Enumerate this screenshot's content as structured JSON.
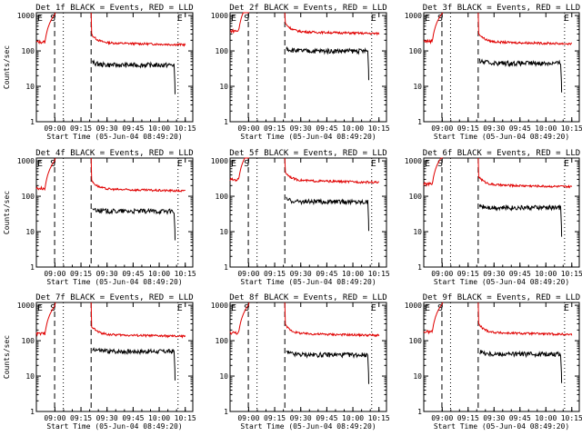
{
  "chart_data": [
    {
      "type": "line",
      "title": "Det 1f BLACK = Events, RED = LLD",
      "ylabel": "Counts/sec",
      "xlabel": "Start Time (05-Jun-04 08:49:20)",
      "x_ticks": [
        "09:00",
        "09:15",
        "09:30",
        "09:45",
        "10:00",
        "10:15"
      ],
      "y_ticks": [
        "1",
        "10",
        "100",
        "1000"
      ],
      "ylim": [
        1,
        1200
      ],
      "markers": [
        {
          "label": "E",
          "x": "08:52"
        },
        {
          "label": "S",
          "x": "09:02"
        },
        {
          "label": "E",
          "x": "10:10"
        }
      ],
      "lld_level": 170,
      "events_level": 40
    },
    {
      "type": "line",
      "title": "Det 2f BLACK = Events, RED = LLD",
      "ylabel": "",
      "xlabel": "Start Time (05-Jun-04 08:49:20)",
      "x_ticks": [
        "09:00",
        "09:15",
        "09:30",
        "09:45",
        "10:00",
        "10:15"
      ],
      "y_ticks": [
        "1",
        "10",
        "100",
        "1000"
      ],
      "ylim": [
        1,
        1200
      ],
      "markers": [
        {
          "label": "E",
          "x": "08:52"
        },
        {
          "label": "S",
          "x": "09:02"
        },
        {
          "label": "E",
          "x": "10:10"
        }
      ],
      "lld_level": 350,
      "events_level": 100
    },
    {
      "type": "line",
      "title": "Det 3f BLACK = Events, RED = LLD",
      "ylabel": "",
      "xlabel": "Start Time (05-Jun-04 08:49:20)",
      "x_ticks": [
        "09:00",
        "09:15",
        "09:30",
        "09:45",
        "10:00",
        "10:15"
      ],
      "y_ticks": [
        "1",
        "10",
        "100",
        "1000"
      ],
      "ylim": [
        1,
        1200
      ],
      "markers": [
        {
          "label": "E",
          "x": "08:52"
        },
        {
          "label": "S",
          "x": "09:02"
        },
        {
          "label": "E",
          "x": "10:10"
        }
      ],
      "lld_level": 180,
      "events_level": 45
    },
    {
      "type": "line",
      "title": "Det 4f BLACK = Events, RED = LLD",
      "ylabel": "Counts/sec",
      "xlabel": "Start Time (05-Jun-04 08:49:20)",
      "x_ticks": [
        "09:00",
        "09:15",
        "09:30",
        "09:45",
        "10:00",
        "10:15"
      ],
      "y_ticks": [
        "1",
        "10",
        "100",
        "1000"
      ],
      "ylim": [
        1,
        1200
      ],
      "markers": [
        {
          "label": "E",
          "x": "08:52"
        },
        {
          "label": "S",
          "x": "09:02"
        },
        {
          "label": "E",
          "x": "10:10"
        }
      ],
      "lld_level": 160,
      "events_level": 38
    },
    {
      "type": "line",
      "title": "Det 5f BLACK = Events, RED = LLD",
      "ylabel": "",
      "xlabel": "Start Time (05-Jun-04 08:49:20)",
      "x_ticks": [
        "09:00",
        "09:15",
        "09:30",
        "09:45",
        "10:00",
        "10:15"
      ],
      "y_ticks": [
        "1",
        "10",
        "100",
        "1000"
      ],
      "ylim": [
        1,
        1200
      ],
      "markers": [
        {
          "label": "E",
          "x": "08:52"
        },
        {
          "label": "S",
          "x": "09:02"
        },
        {
          "label": "E",
          "x": "10:10"
        }
      ],
      "lld_level": 280,
      "events_level": 70
    },
    {
      "type": "line",
      "title": "Det 6f BLACK = Events, RED = LLD",
      "ylabel": "",
      "xlabel": "Start Time (05-Jun-04 08:49:20)",
      "x_ticks": [
        "09:00",
        "09:15",
        "09:30",
        "09:45",
        "10:00",
        "10:15"
      ],
      "y_ticks": [
        "1",
        "10",
        "100",
        "1000"
      ],
      "ylim": [
        1,
        1200
      ],
      "markers": [
        {
          "label": "E",
          "x": "08:52"
        },
        {
          "label": "S",
          "x": "09:02"
        },
        {
          "label": "E",
          "x": "10:10"
        }
      ],
      "lld_level": 210,
      "events_level": 48
    },
    {
      "type": "line",
      "title": "Det 7f BLACK = Events, RED = LLD",
      "ylabel": "Counts/sec",
      "xlabel": "Start Time (05-Jun-04 08:49:20)",
      "x_ticks": [
        "09:00",
        "09:15",
        "09:30",
        "09:45",
        "10:00",
        "10:15"
      ],
      "y_ticks": [
        "1",
        "10",
        "100",
        "1000"
      ],
      "ylim": [
        1,
        1200
      ],
      "markers": [
        {
          "label": "E",
          "x": "08:52"
        },
        {
          "label": "S",
          "x": "09:02"
        },
        {
          "label": "E",
          "x": "10:10"
        }
      ],
      "lld_level": 150,
      "events_level": 50
    },
    {
      "type": "line",
      "title": "Det 8f BLACK = Events, RED = LLD",
      "ylabel": "",
      "xlabel": "Start Time (05-Jun-04 08:49:20)",
      "x_ticks": [
        "09:00",
        "09:15",
        "09:30",
        "09:45",
        "10:00",
        "10:15"
      ],
      "y_ticks": [
        "1",
        "10",
        "100",
        "1000"
      ],
      "ylim": [
        1,
        1200
      ],
      "markers": [
        {
          "label": "E",
          "x": "08:52"
        },
        {
          "label": "S",
          "x": "09:02"
        },
        {
          "label": "E",
          "x": "10:10"
        }
      ],
      "lld_level": 160,
      "events_level": 40
    },
    {
      "type": "line",
      "title": "Det 9f BLACK = Events, RED = LLD",
      "ylabel": "",
      "xlabel": "Start Time (05-Jun-04 08:49:20)",
      "x_ticks": [
        "09:00",
        "09:15",
        "09:30",
        "09:45",
        "10:00",
        "10:15"
      ],
      "y_ticks": [
        "1",
        "10",
        "100",
        "1000"
      ],
      "ylim": [
        1,
        1200
      ],
      "markers": [
        {
          "label": "E",
          "x": "08:52"
        },
        {
          "label": "S",
          "x": "09:02"
        },
        {
          "label": "E",
          "x": "10:10"
        }
      ],
      "lld_level": 170,
      "events_level": 42
    }
  ]
}
